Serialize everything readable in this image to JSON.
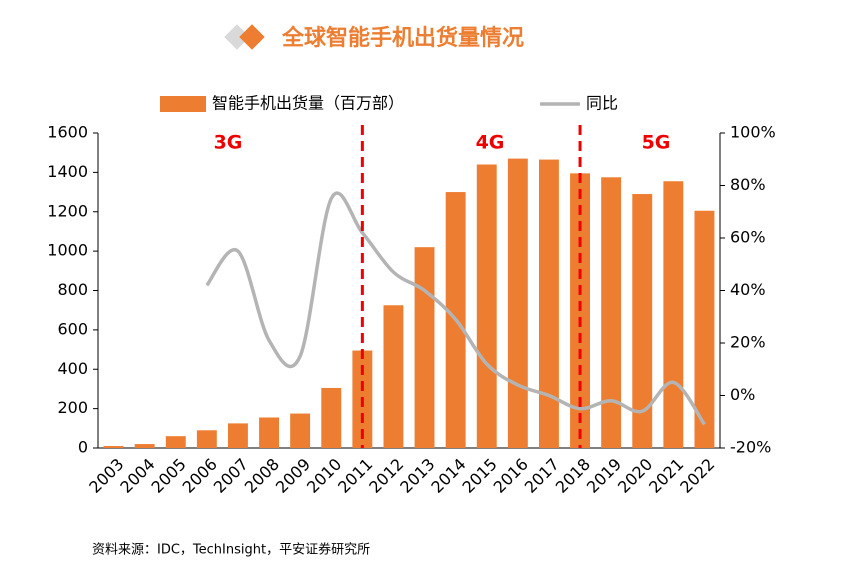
{
  "chart_data": {
    "type": "bar_line",
    "title": "全球智能手机出货量情况",
    "source": "资料来源：IDC，TechInsight，平安证券研究所",
    "annotations": [
      "3G",
      "4G",
      "5G"
    ],
    "categories": [
      "2003",
      "2004",
      "2005",
      "2006",
      "2007",
      "2008",
      "2009",
      "2010",
      "2011",
      "2012",
      "2013",
      "2014",
      "2015",
      "2016",
      "2017",
      "2018",
      "2019",
      "2020",
      "2021",
      "2022"
    ],
    "series": [
      {
        "name": "智能手机出货量（百万部）",
        "color": "#ed7d31",
        "type": "bar",
        "values": [
          10,
          20,
          60,
          90,
          125,
          155,
          175,
          305,
          495,
          725,
          1020,
          1300,
          1440,
          1470,
          1465,
          1395,
          1375,
          1290,
          1355,
          1205
        ]
      },
      {
        "name": "同比",
        "color": "#b4b4b4",
        "type": "line",
        "axis": "y2",
        "values": [
          null,
          null,
          null,
          42,
          55,
          21,
          15,
          75,
          62,
          47,
          40,
          29,
          12,
          4,
          0,
          -5,
          -2,
          -6,
          5,
          -11
        ]
      }
    ],
    "ylim": [
      0,
      1600
    ],
    "yticks": [
      0,
      200,
      400,
      600,
      800,
      1000,
      1200,
      1400,
      1600
    ],
    "y2lim": [
      -20,
      100
    ],
    "y2ticks": [
      {
        "value": -20,
        "label": "-20%"
      },
      {
        "value": 0,
        "label": "0%"
      },
      {
        "value": 20,
        "label": "20%"
      },
      {
        "value": 40,
        "label": "40%"
      },
      {
        "value": 60,
        "label": "60%"
      },
      {
        "value": 80,
        "label": "80%"
      },
      {
        "value": 100,
        "label": "100%"
      }
    ]
  }
}
